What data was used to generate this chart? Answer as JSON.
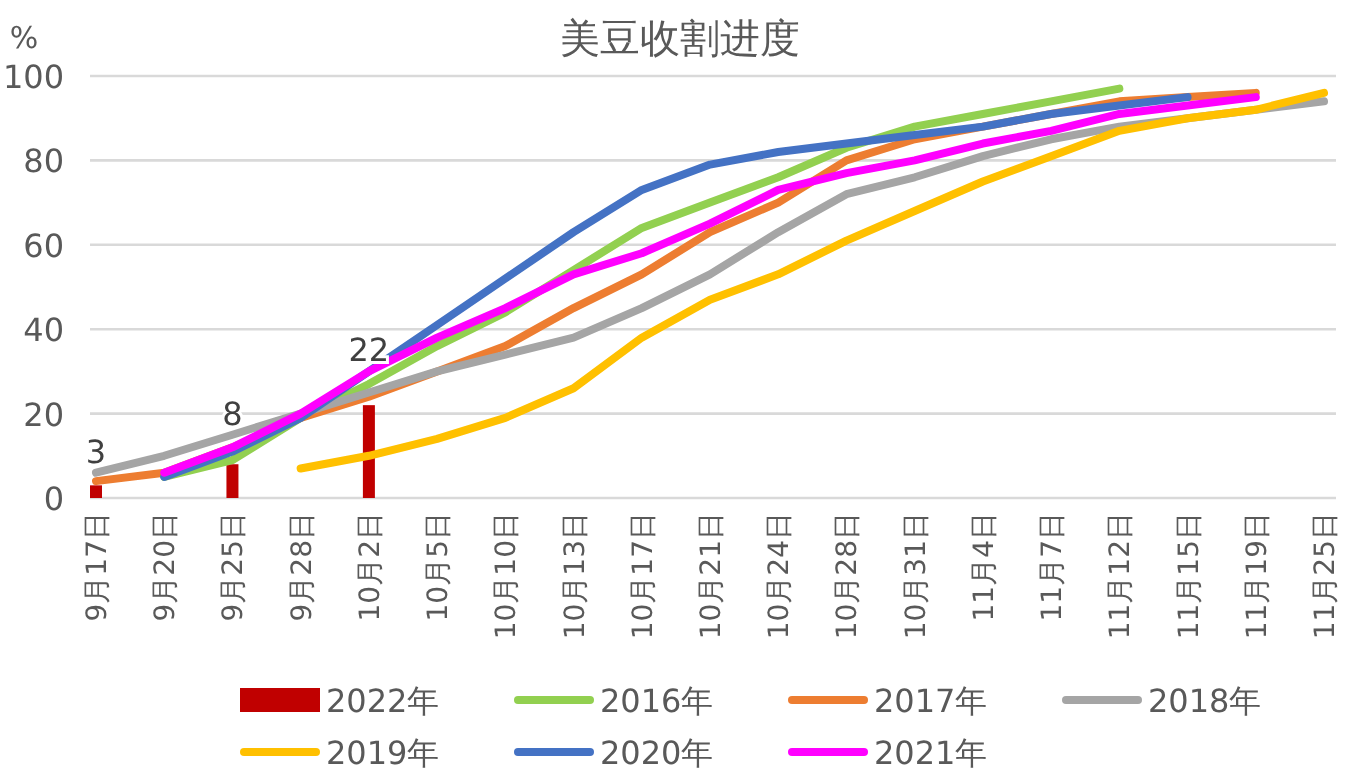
{
  "chart_data": {
    "type": "line",
    "title": "美豆收割进度",
    "ylabel": "%",
    "categories": [
      "9月17日",
      "9月20日",
      "9月25日",
      "9月28日",
      "10月2日",
      "10月5日",
      "10月10日",
      "10月13日",
      "10月17日",
      "10月21日",
      "10月24日",
      "10月28日",
      "10月31日",
      "11月4日",
      "11月7日",
      "11月12日",
      "11月15日",
      "11月19日",
      "11月25日"
    ],
    "ylim": [
      0,
      100
    ],
    "yticks": [
      0,
      20,
      40,
      60,
      80,
      100
    ],
    "grid": "y",
    "legend": "bottom",
    "series": [
      {
        "name": "2022年",
        "type": "bar",
        "color": "#c00000",
        "values": [
          3,
          null,
          8,
          null,
          22,
          null,
          null,
          null,
          null,
          null,
          null,
          null,
          null,
          null,
          null,
          null,
          null,
          null,
          null
        ],
        "value_labels": [
          "3",
          null,
          "8",
          null,
          "22",
          null,
          null,
          null,
          null,
          null,
          null,
          null,
          null,
          null,
          null,
          null,
          null,
          null,
          null
        ]
      },
      {
        "name": "2016年",
        "color": "#92d050",
        "values": [
          null,
          5,
          9,
          19,
          27,
          36,
          44,
          54,
          64,
          70,
          76,
          83,
          88,
          91,
          94,
          97,
          null,
          null,
          null
        ]
      },
      {
        "name": "2017年",
        "color": "#ed7d31",
        "values": [
          4,
          6,
          12,
          19,
          24,
          30,
          36,
          45,
          53,
          63,
          70,
          80,
          85,
          88,
          91,
          94,
          95,
          96,
          null
        ]
      },
      {
        "name": "2018年",
        "color": "#a5a5a5",
        "values": [
          6,
          10,
          15,
          20,
          25,
          30,
          34,
          38,
          45,
          53,
          63,
          72,
          76,
          81,
          85,
          88,
          90,
          92,
          94
        ]
      },
      {
        "name": "2019年",
        "color": "#ffc000",
        "values": [
          null,
          null,
          null,
          7,
          10,
          14,
          19,
          26,
          38,
          47,
          53,
          61,
          68,
          75,
          81,
          87,
          90,
          92,
          96
        ]
      },
      {
        "name": "2020年",
        "color": "#4472c4",
        "values": [
          null,
          5,
          11,
          19,
          30,
          41,
          52,
          63,
          73,
          79,
          82,
          84,
          86,
          88,
          91,
          93,
          95,
          null,
          null
        ]
      },
      {
        "name": "2021年",
        "color": "#ff00ff",
        "values": [
          null,
          6,
          12,
          20,
          30,
          38,
          45,
          53,
          58,
          65,
          73,
          77,
          80,
          84,
          87,
          91,
          93,
          95,
          null
        ]
      }
    ]
  }
}
